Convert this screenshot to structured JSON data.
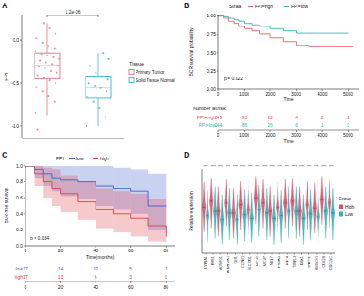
{
  "chart_data": [
    {
      "panel": "A",
      "type": "box",
      "y_label": "FPI",
      "legend_title": "Tissue",
      "legend": "right",
      "grid": false,
      "tick_labels": "y",
      "ylim": [
        -1.15,
        0.3
      ],
      "yticks": [
        {
          "value": -1,
          "label": "-1.0"
        },
        {
          "value": -0.5,
          "label": "-0.5"
        },
        {
          "value": 0,
          "label": "0.0"
        }
      ],
      "annotations": [
        "1.2e-06"
      ],
      "series": [
        {
          "name": "Primary Tumor",
          "color": "#ee6f82",
          "min": -0.88,
          "q1": -0.45,
          "median": -0.3,
          "q3": -0.15,
          "max": 0.2,
          "points": [
            -0.85,
            -0.72,
            -0.65,
            -0.6,
            -0.55,
            -0.5,
            -0.47,
            -0.44,
            -0.41,
            -0.38,
            -0.36,
            -0.33,
            -0.31,
            -0.3,
            -0.28,
            -0.26,
            -0.24,
            -0.22,
            -0.2,
            -0.18,
            -0.16,
            -0.13,
            -0.1,
            -0.07,
            -0.03,
            0.02,
            0.08,
            0.14,
            0.2,
            -1.05
          ]
        },
        {
          "name": "Solid Tissue Normal",
          "color": "#3fb6c8",
          "min": -1.0,
          "q1": -0.68,
          "median": -0.55,
          "q3": -0.42,
          "max": -0.15,
          "points": [
            -1.0,
            -0.9,
            -0.8,
            -0.72,
            -0.66,
            -0.6,
            -0.56,
            -0.53,
            -0.5,
            -0.46,
            -0.42,
            -0.38,
            -0.3,
            -0.22,
            -0.15
          ]
        }
      ]
    },
    {
      "panel": "B",
      "type": "line",
      "line_style": "step",
      "x_label": "Time",
      "y_label": "BCR survival probability",
      "legend_title": "Strata",
      "legend": "top",
      "grid": false,
      "xlim": [
        0,
        5400
      ],
      "xticks": [
        0,
        1000,
        2000,
        3000,
        4000,
        5000
      ],
      "ylim": [
        0,
        1.02
      ],
      "yticks": [
        {
          "value": 0,
          "label": "0.00"
        },
        {
          "value": 0.25,
          "label": "0.25"
        },
        {
          "value": 0.5,
          "label": "0.50"
        },
        {
          "value": 0.75,
          "label": "0.75"
        },
        {
          "value": 1,
          "label": "1.00"
        }
      ],
      "annotations": [
        "p = 0.022"
      ],
      "series": [
        {
          "name": "FPI=high",
          "color": "#e8636b",
          "x": [
            0,
            200,
            400,
            600,
            800,
            1000,
            1300,
            1600,
            2000,
            2500,
            3000,
            3500,
            4000,
            5200
          ],
          "values": [
            1,
            0.97,
            0.93,
            0.9,
            0.86,
            0.83,
            0.8,
            0.76,
            0.7,
            0.65,
            0.6,
            0.58,
            0.58,
            0.58
          ]
        },
        {
          "name": "FPI=low",
          "color": "#35b6b0",
          "x": [
            0,
            200,
            400,
            600,
            800,
            1000,
            1300,
            1600,
            2000,
            2500,
            3000,
            3500,
            4000,
            5000
          ],
          "values": [
            1,
            0.99,
            0.97,
            0.95,
            0.93,
            0.9,
            0.88,
            0.86,
            0.83,
            0.8,
            0.77,
            0.77,
            0.77,
            0.77
          ]
        }
      ],
      "risk_table": {
        "title": "Number at risk",
        "x": [
          0,
          1000,
          2000,
          3000,
          4000,
          5000
        ],
        "rows": [
          {
            "name": "FPI=high",
            "values": [
              249,
              93,
              22,
              4,
              2,
              1
            ]
          },
          {
            "name": "FPI=low",
            "values": [
              244,
              86,
              25,
              6,
              1,
              0
            ]
          }
        ]
      }
    },
    {
      "panel": "C",
      "type": "line",
      "line_style": "step",
      "x_label": "Time(months)",
      "y_label": "BCR-free survival",
      "legend_title": "FPI",
      "legend": "top",
      "grid": false,
      "xlim": [
        0,
        85
      ],
      "xticks": [
        0,
        20,
        40,
        60,
        80
      ],
      "ylim": [
        0,
        1
      ],
      "yticks": [
        {
          "value": 0,
          "label": "0.0"
        },
        {
          "value": 0.2,
          "label": "0.2"
        },
        {
          "value": 0.4,
          "label": "0.4"
        },
        {
          "value": 0.6,
          "label": "0.6"
        },
        {
          "value": 0.8,
          "label": "0.8"
        },
        {
          "value": 1,
          "label": "1.0"
        }
      ],
      "annotations": [
        "p = 0.034"
      ],
      "series": [
        {
          "name": "low",
          "color": "#3f5fcf",
          "x": [
            0,
            5,
            10,
            15,
            20,
            30,
            40,
            50,
            60,
            70,
            80
          ],
          "values": [
            1,
            0.95,
            0.9,
            0.85,
            0.82,
            0.8,
            0.75,
            0.72,
            0.68,
            0.5,
            0.5
          ],
          "lower": [
            1,
            0.85,
            0.75,
            0.68,
            0.62,
            0.58,
            0.5,
            0.45,
            0.4,
            0.2,
            0.2
          ],
          "upper": [
            1,
            1,
            1,
            1,
            1,
            1,
            1,
            0.98,
            0.95,
            0.9,
            0.9
          ]
        },
        {
          "name": "high",
          "color": "#e0404a",
          "x": [
            0,
            5,
            10,
            15,
            20,
            30,
            40,
            50,
            60,
            70,
            80
          ],
          "values": [
            1,
            0.9,
            0.8,
            0.72,
            0.65,
            0.55,
            0.45,
            0.4,
            0.35,
            0.25,
            0.12
          ],
          "lower": [
            1,
            0.75,
            0.6,
            0.5,
            0.42,
            0.32,
            0.22,
            0.17,
            0.12,
            0.05,
            0.02
          ],
          "upper": [
            1,
            1,
            0.98,
            0.95,
            0.88,
            0.8,
            0.72,
            0.68,
            0.65,
            0.58,
            0.45
          ]
        }
      ],
      "risk_table": {
        "x": [
          0,
          20,
          40,
          60,
          80
        ],
        "rows": [
          {
            "name": "low",
            "values": [
              17,
              14,
              12,
              5,
              1
            ]
          },
          {
            "name": "high",
            "values": [
              17,
              13,
              6,
              3,
              0
            ]
          }
        ]
      }
    },
    {
      "panel": "D",
      "type": "violin",
      "y_label": "Relative expression",
      "legend_title": "Group",
      "legend": "right",
      "grid": false,
      "tick_labels": "x",
      "ylim": [
        0,
        1
      ],
      "categories": [
        "LYPLA1",
        "RRS1",
        "MOSPD1",
        "ALDH18A1",
        "GFI1",
        "CCNB1",
        "SLC7A11",
        "MCM2",
        "MCM7",
        "NOL7",
        "PSMA3",
        "RFC4",
        "TRIP13",
        "DDX1",
        "SNRPE",
        "HMGCS1",
        "CDC20",
        "CDC25C"
      ],
      "significance": [
        "****",
        "****",
        "****",
        "****",
        "****",
        "****",
        "****",
        "****",
        "****",
        "****",
        "****",
        "****",
        "****",
        "****",
        "****",
        "****",
        "****",
        "****"
      ],
      "series": [
        {
          "name": "High",
          "color": "#e0506a",
          "min": [
            0.25,
            0.3,
            0.2,
            0.32,
            0.18,
            0.28,
            0.22,
            0.35,
            0.3,
            0.2,
            0.25,
            0.3,
            0.32,
            0.2,
            0.28,
            0.24,
            0.34,
            0.3
          ],
          "q1": [
            0.48,
            0.55,
            0.43,
            0.53,
            0.41,
            0.51,
            0.45,
            0.59,
            0.53,
            0.43,
            0.48,
            0.53,
            0.55,
            0.43,
            0.51,
            0.47,
            0.57,
            0.53
          ],
          "median": [
            0.55,
            0.62,
            0.5,
            0.6,
            0.48,
            0.58,
            0.52,
            0.66,
            0.6,
            0.5,
            0.55,
            0.6,
            0.62,
            0.5,
            0.58,
            0.54,
            0.64,
            0.6
          ],
          "q3": [
            0.62,
            0.69,
            0.57,
            0.67,
            0.55,
            0.65,
            0.59,
            0.73,
            0.67,
            0.57,
            0.62,
            0.67,
            0.69,
            0.57,
            0.65,
            0.61,
            0.71,
            0.67
          ],
          "max": [
            0.85,
            0.9,
            0.8,
            0.88,
            0.78,
            0.86,
            0.82,
            0.92,
            0.88,
            0.8,
            0.85,
            0.88,
            0.9,
            0.8,
            0.86,
            0.84,
            0.92,
            0.88
          ]
        },
        {
          "name": "Low",
          "color": "#2fb3b8",
          "min": [
            0.12,
            0.18,
            0.1,
            0.16,
            0.1,
            0.14,
            0.12,
            0.2,
            0.16,
            0.1,
            0.12,
            0.18,
            0.18,
            0.1,
            0.15,
            0.12,
            0.18,
            0.16
          ],
          "q1": [
            0.38,
            0.43,
            0.33,
            0.41,
            0.33,
            0.39,
            0.35,
            0.45,
            0.41,
            0.35,
            0.38,
            0.43,
            0.43,
            0.35,
            0.4,
            0.37,
            0.43,
            0.41
          ],
          "median": [
            0.45,
            0.5,
            0.4,
            0.48,
            0.4,
            0.46,
            0.42,
            0.52,
            0.48,
            0.42,
            0.45,
            0.5,
            0.5,
            0.42,
            0.47,
            0.44,
            0.5,
            0.48
          ],
          "q3": [
            0.52,
            0.57,
            0.47,
            0.55,
            0.47,
            0.53,
            0.49,
            0.59,
            0.55,
            0.49,
            0.52,
            0.57,
            0.57,
            0.49,
            0.54,
            0.51,
            0.57,
            0.55
          ],
          "max": [
            0.75,
            0.8,
            0.7,
            0.78,
            0.7,
            0.76,
            0.72,
            0.82,
            0.78,
            0.7,
            0.75,
            0.8,
            0.8,
            0.7,
            0.76,
            0.74,
            0.8,
            0.78
          ]
        }
      ]
    }
  ]
}
